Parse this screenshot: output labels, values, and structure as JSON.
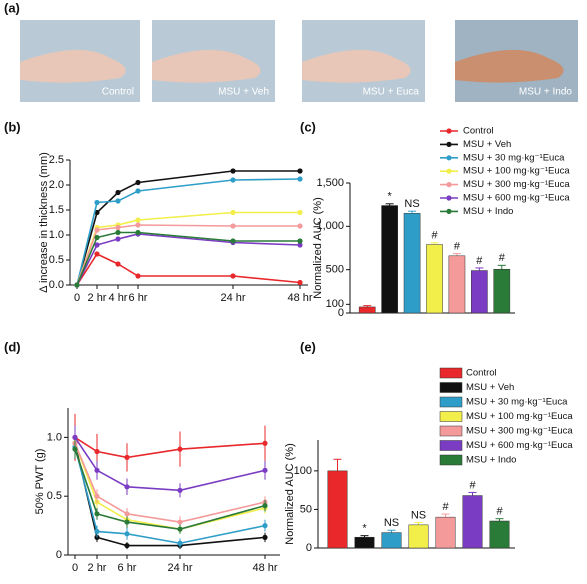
{
  "photos": {
    "panel": "(a)",
    "captions": [
      "Control",
      "MSU + Veh",
      "MSU + Euca",
      "MSU + Indo"
    ]
  },
  "chart_data": [
    {
      "type": "line",
      "panel": "(b)",
      "ylabel": "Δ increase in thickness (mm)",
      "categories": [
        "0",
        "2 hr",
        "4 hr",
        "6 hr",
        "24 hr",
        "48 hr"
      ],
      "ylim": [
        0,
        2.5
      ],
      "yticks": [
        {
          "value": 0,
          "label": "0.0"
        },
        0.5,
        {
          "value": 1,
          "label": "1.0"
        },
        1.5,
        {
          "value": 2,
          "label": "2.0"
        },
        2.5
      ],
      "series": [
        {
          "name": "Control",
          "color": "#e8282b",
          "values": [
            0,
            0.62,
            0.42,
            0.18,
            0.18,
            0.05
          ]
        },
        {
          "name": "MSU + Veh",
          "color": "#111111",
          "values": [
            0,
            1.45,
            1.85,
            2.05,
            2.28,
            2.28
          ]
        },
        {
          "name": "MSU + 30 mg·kg⁻¹Euca",
          "color": "#2e9ec9",
          "values": [
            0,
            1.65,
            1.68,
            1.88,
            2.1,
            2.12
          ]
        },
        {
          "name": "MSU + 100 mg·kg⁻¹Euca",
          "color": "#f2ee4a",
          "values": [
            0,
            1.15,
            1.2,
            1.3,
            1.45,
            1.45
          ]
        },
        {
          "name": "MSU + 300 mg·kg⁻¹Euca",
          "color": "#f49a9a",
          "values": [
            0,
            1.1,
            1.15,
            1.2,
            1.18,
            1.18
          ]
        },
        {
          "name": "MSU + 600 mg·kg⁻¹Euca",
          "color": "#7a3cc2",
          "values": [
            0,
            0.8,
            0.92,
            1.02,
            0.85,
            0.8
          ]
        },
        {
          "name": "MSU + Indo",
          "color": "#2a7a38",
          "values": [
            0,
            0.95,
            1.05,
            1.05,
            0.88,
            0.88
          ]
        }
      ]
    },
    {
      "type": "bar",
      "panel": "(c)",
      "ylabel": "Normalized AUC (%)",
      "ylim": [
        0,
        1500
      ],
      "yticks": [
        0,
        100,
        500,
        {
          "value": 1000,
          "label": "1,000"
        },
        {
          "value": 1500,
          "label": "1,500"
        }
      ],
      "values": [
        70,
        1240,
        1150,
        790,
        660,
        490,
        505
      ],
      "errors": [
        15,
        20,
        25,
        20,
        25,
        30,
        45
      ],
      "colors": [
        "#e8282b",
        "#111111",
        "#2e9ec9",
        "#f2ee4a",
        "#f49a9a",
        "#7a3cc2",
        "#2a7a38"
      ],
      "annotations": [
        null,
        "*",
        "NS",
        "#",
        "#",
        "#",
        "#"
      ]
    },
    {
      "type": "line",
      "panel": "(d)",
      "ylabel": "50% PWT (g)",
      "categories": [
        "0",
        "2 hr",
        "6 hr",
        "24 hr",
        "48 hr"
      ],
      "ylim": [
        0,
        1.25
      ],
      "yticks": [
        0,
        0.5,
        {
          "value": 1,
          "label": "1.0"
        }
      ],
      "series": [
        {
          "color": "#e8282b",
          "values": [
            1,
            0.88,
            0.83,
            0.9,
            0.95
          ],
          "errors": [
            0.2,
            0.15,
            0.12,
            0.15,
            0.15
          ]
        },
        {
          "color": "#111111",
          "values": [
            0.95,
            0.15,
            0.08,
            0.08,
            0.15
          ],
          "errors": [
            0.08,
            0.04,
            0.03,
            0.03,
            0.04
          ]
        },
        {
          "color": "#2e9ec9",
          "values": [
            0.92,
            0.2,
            0.18,
            0.1,
            0.25
          ],
          "errors": [
            0.08,
            0.05,
            0.05,
            0.04,
            0.05
          ]
        },
        {
          "color": "#f2ee4a",
          "values": [
            0.95,
            0.45,
            0.3,
            0.22,
            0.4
          ],
          "errors": [
            0.08,
            0.06,
            0.05,
            0.04,
            0.05
          ]
        },
        {
          "color": "#f49a9a",
          "values": [
            0.95,
            0.5,
            0.35,
            0.28,
            0.45
          ],
          "errors": [
            0.08,
            0.06,
            0.05,
            0.05,
            0.05
          ]
        },
        {
          "color": "#7a3cc2",
          "values": [
            1,
            0.72,
            0.58,
            0.55,
            0.72
          ],
          "errors": [
            0.1,
            0.08,
            0.07,
            0.06,
            0.08
          ]
        },
        {
          "color": "#2a7a38",
          "values": [
            0.9,
            0.35,
            0.28,
            0.22,
            0.42
          ],
          "errors": [
            0.08,
            0.05,
            0.05,
            0.04,
            0.05
          ]
        }
      ]
    },
    {
      "type": "bar",
      "panel": "(e)",
      "ylabel": "Normalized AUC (%)",
      "ylim": [
        0,
        140
      ],
      "yticks": [
        0,
        50,
        100
      ],
      "categories": [
        "Control",
        "MSU + Veh",
        "MSU + 30 mg·kg⁻¹Euca",
        "MSU + 100 mg·kg⁻¹Euca",
        "MSU + 300 mg·kg⁻¹Euca",
        "MSU + 600 mg·kg⁻¹Euca",
        "MSU + Indo"
      ],
      "values": [
        100,
        14,
        20,
        30,
        40,
        68,
        35
      ],
      "errors": [
        15,
        2,
        3,
        3,
        4,
        4,
        3
      ],
      "colors": [
        "#e8282b",
        "#111111",
        "#2e9ec9",
        "#f2ee4a",
        "#f49a9a",
        "#7a3cc2",
        "#2a7a38"
      ],
      "annotations": [
        null,
        "*",
        "NS",
        "NS",
        "#",
        "#",
        "#"
      ]
    }
  ]
}
